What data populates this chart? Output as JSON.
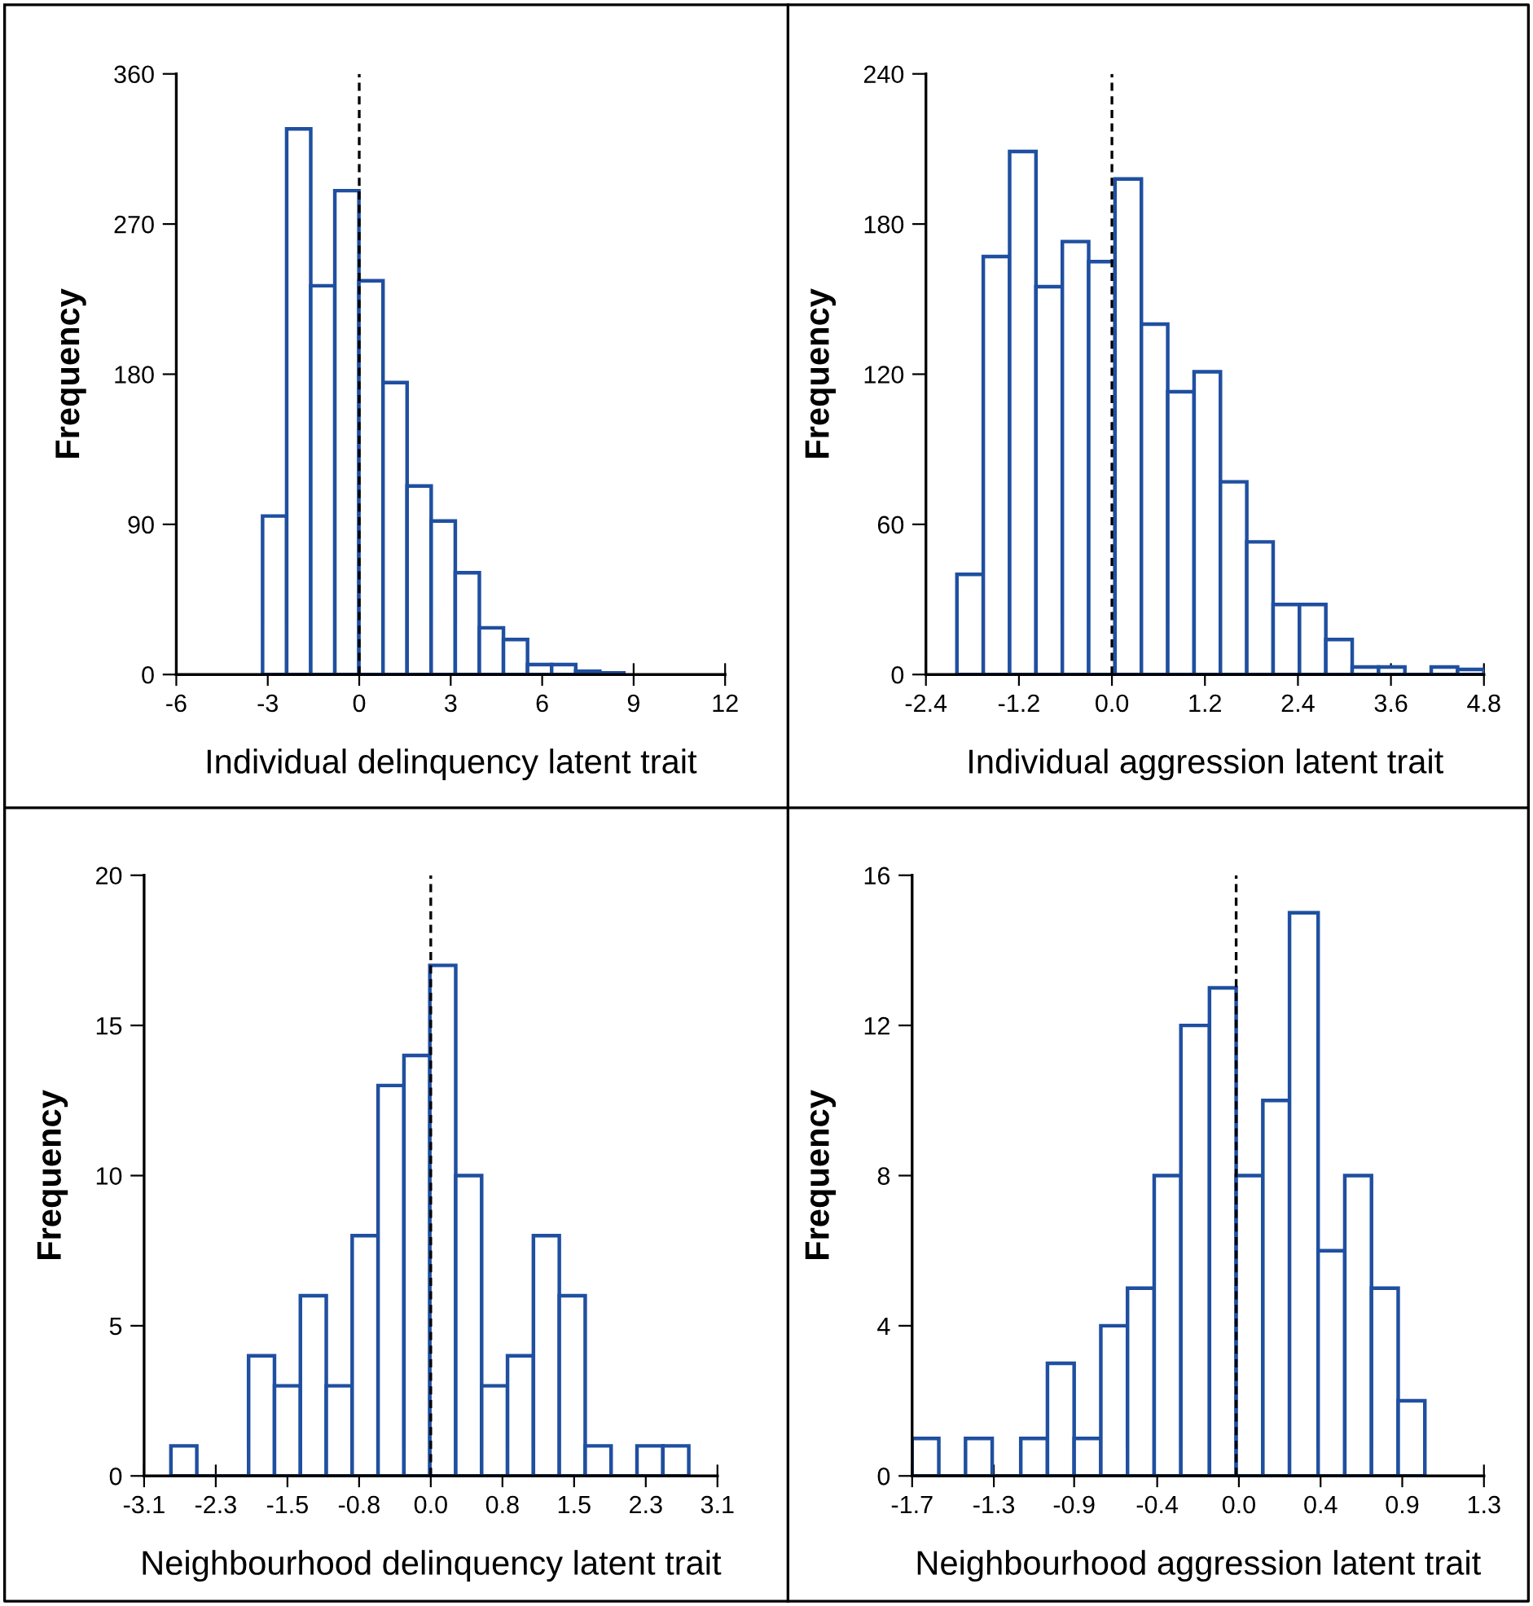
{
  "chart_data": [
    {
      "type": "histogram",
      "xlabel": "Individual delinquency latent trait",
      "ylabel": "Frequency",
      "color": "#1f4fa0",
      "bins": [
        -3.17,
        -2.38,
        -1.59,
        -0.8,
        -0.01,
        0.78,
        1.57,
        2.36,
        3.15,
        3.94,
        4.73,
        5.52,
        6.31,
        7.1,
        7.89,
        8.68
      ],
      "values": [
        95,
        327,
        233,
        290,
        236,
        175,
        113,
        92,
        61,
        28,
        21,
        6,
        6,
        2,
        1
      ],
      "xlim": [
        -6,
        12
      ],
      "xticks": [
        -6,
        -3,
        0,
        3,
        6,
        9,
        12
      ],
      "ylim": [
        0,
        360
      ],
      "yticks": [
        0,
        90,
        180,
        270,
        360
      ],
      "ref_lines": [
        {
          "axis": "x",
          "value": 0,
          "line_style": "dashed",
          "color": "#000000"
        }
      ],
      "grid": false
    },
    {
      "type": "histogram",
      "xlabel": "Individual aggression latent trait",
      "ylabel": "Frequency",
      "color": "#1f4fa0",
      "bins": [
        -2.0,
        -1.66,
        -1.32,
        -0.98,
        -0.64,
        -0.3,
        0.04,
        0.38,
        0.72,
        1.06,
        1.4,
        1.74,
        2.08,
        2.42,
        2.76,
        3.1,
        3.44,
        3.78,
        4.12,
        4.46,
        4.8
      ],
      "values": [
        40,
        167,
        209,
        155,
        173,
        165,
        198,
        140,
        113,
        121,
        77,
        53,
        28,
        28,
        14,
        3,
        3,
        0,
        3,
        2
      ],
      "xlim": [
        -2.4,
        4.8
      ],
      "xticks": [
        -2.4,
        -1.2,
        {
          "value": 0,
          "label": "0.0"
        },
        1.2,
        2.4,
        3.6,
        4.8
      ],
      "ylim": [
        0,
        240
      ],
      "yticks": [
        0,
        60,
        120,
        180,
        240
      ],
      "ref_lines": [
        {
          "axis": "x",
          "value": 0,
          "line_style": "dashed",
          "color": "#000000"
        }
      ],
      "grid": false
    },
    {
      "type": "histogram",
      "xlabel": "Neighbourhood delinquency latent trait",
      "ylabel": "Frequency",
      "color": "#1f4fa0",
      "bins": [
        -2.81,
        -2.53,
        -2.25,
        -1.97,
        -1.69,
        -1.41,
        -1.13,
        -0.85,
        -0.57,
        -0.29,
        -0.01,
        0.27,
        0.55,
        0.83,
        1.11,
        1.39,
        1.67,
        1.95,
        2.23,
        2.51,
        2.79
      ],
      "values": [
        1,
        0,
        0,
        4,
        3,
        6,
        3,
        8,
        13,
        14,
        17,
        10,
        3,
        4,
        8,
        6,
        1,
        0,
        1,
        1
      ],
      "xlim": [
        -3.1,
        3.1
      ],
      "xticks": [
        -3.1,
        {
          "value": -2.325,
          "label": "-2.3"
        },
        {
          "value": -1.55,
          "label": "-1.5"
        },
        {
          "value": -0.775,
          "label": "-0.8"
        },
        {
          "value": 0,
          "label": "0.0"
        },
        {
          "value": 0.775,
          "label": "0.8"
        },
        {
          "value": 1.55,
          "label": "1.5"
        },
        {
          "value": 2.325,
          "label": "2.3"
        },
        3.1
      ],
      "ylim": [
        0,
        20
      ],
      "yticks": [
        0,
        5,
        10,
        15,
        20
      ],
      "ref_lines": [
        {
          "axis": "x",
          "value": 0,
          "line_style": "dashed",
          "color": "#000000"
        }
      ],
      "grid": false
    },
    {
      "type": "histogram",
      "xlabel": "Neighbourhood aggression latent trait",
      "ylabel": "Frequency",
      "color": "#1f4fa0",
      "bins": [
        -1.7,
        -1.56,
        -1.42,
        -1.28,
        -1.13,
        -0.99,
        -0.85,
        -0.71,
        -0.57,
        -0.43,
        -0.29,
        -0.14,
        0.0,
        0.14,
        0.28,
        0.43,
        0.57,
        0.71,
        0.85,
        0.99
      ],
      "values": [
        1,
        0,
        1,
        0,
        1,
        3,
        1,
        4,
        5,
        8,
        12,
        13,
        8,
        10,
        15,
        6,
        8,
        5,
        2
      ],
      "xlim": [
        -1.7,
        1.3
      ],
      "xticks": [
        -1.7,
        {
          "value": -1.2714,
          "label": "-1.3"
        },
        {
          "value": -0.85,
          "label": "-0.9"
        },
        {
          "value": -0.4143,
          "label": "-0.4"
        },
        {
          "value": 0.0143,
          "label": "0.0"
        },
        {
          "value": 0.4429,
          "label": "0.4"
        },
        {
          "value": 0.8714,
          "label": "0.9"
        },
        1.3
      ],
      "ylim": [
        0,
        16
      ],
      "yticks": [
        0,
        4,
        8,
        12,
        16
      ],
      "ref_lines": [
        {
          "axis": "x",
          "value": 0,
          "line_style": "dashed",
          "color": "#000000"
        }
      ],
      "grid": false
    }
  ]
}
